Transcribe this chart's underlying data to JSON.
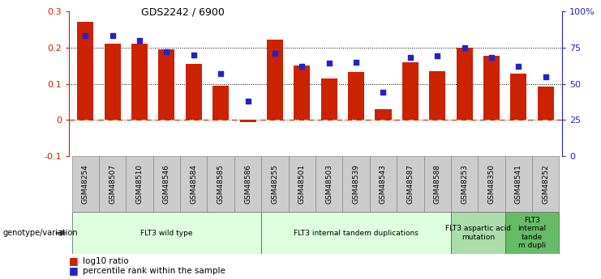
{
  "title": "GDS2242 / 6900",
  "samples": [
    "GSM48254",
    "GSM48507",
    "GSM48510",
    "GSM48546",
    "GSM48584",
    "GSM48585",
    "GSM48586",
    "GSM48255",
    "GSM48501",
    "GSM48503",
    "GSM48539",
    "GSM48543",
    "GSM48587",
    "GSM48588",
    "GSM48253",
    "GSM48350",
    "GSM48541",
    "GSM48252"
  ],
  "log10_ratio": [
    0.27,
    0.21,
    0.21,
    0.195,
    0.155,
    0.095,
    -0.005,
    0.222,
    0.15,
    0.115,
    0.132,
    0.03,
    0.16,
    0.135,
    0.2,
    0.178,
    0.128,
    0.093
  ],
  "percentile_rank": [
    83,
    83,
    80,
    72,
    70,
    57,
    38,
    71,
    62,
    64,
    65,
    44,
    68,
    69,
    75,
    68,
    62,
    55
  ],
  "bar_color": "#cc2200",
  "dot_color": "#2222cc",
  "ylim_left": [
    -0.1,
    0.3
  ],
  "ylim_right": [
    0,
    100
  ],
  "yticks_left": [
    -0.1,
    0.0,
    0.1,
    0.2,
    0.3
  ],
  "ytick_labels_left": [
    "-0.1",
    "0",
    "0.1",
    "0.2",
    "0.3"
  ],
  "yticks_right": [
    0,
    25,
    50,
    75,
    100
  ],
  "ytick_labels_right": [
    "0",
    "25",
    "50",
    "75",
    "100%"
  ],
  "groups": [
    {
      "label": "FLT3 wild type",
      "start": 0,
      "end": 7,
      "color": "#ddffdd"
    },
    {
      "label": "FLT3 internal tandem duplications",
      "start": 7,
      "end": 14,
      "color": "#ddffdd"
    },
    {
      "label": "FLT3 aspartic acid\nmutation",
      "start": 14,
      "end": 16,
      "color": "#aaddaa"
    },
    {
      "label": "FLT3\ninternal\ntande\nm dupli",
      "start": 16,
      "end": 18,
      "color": "#66bb66"
    }
  ],
  "genotype_label": "genotype/variation"
}
